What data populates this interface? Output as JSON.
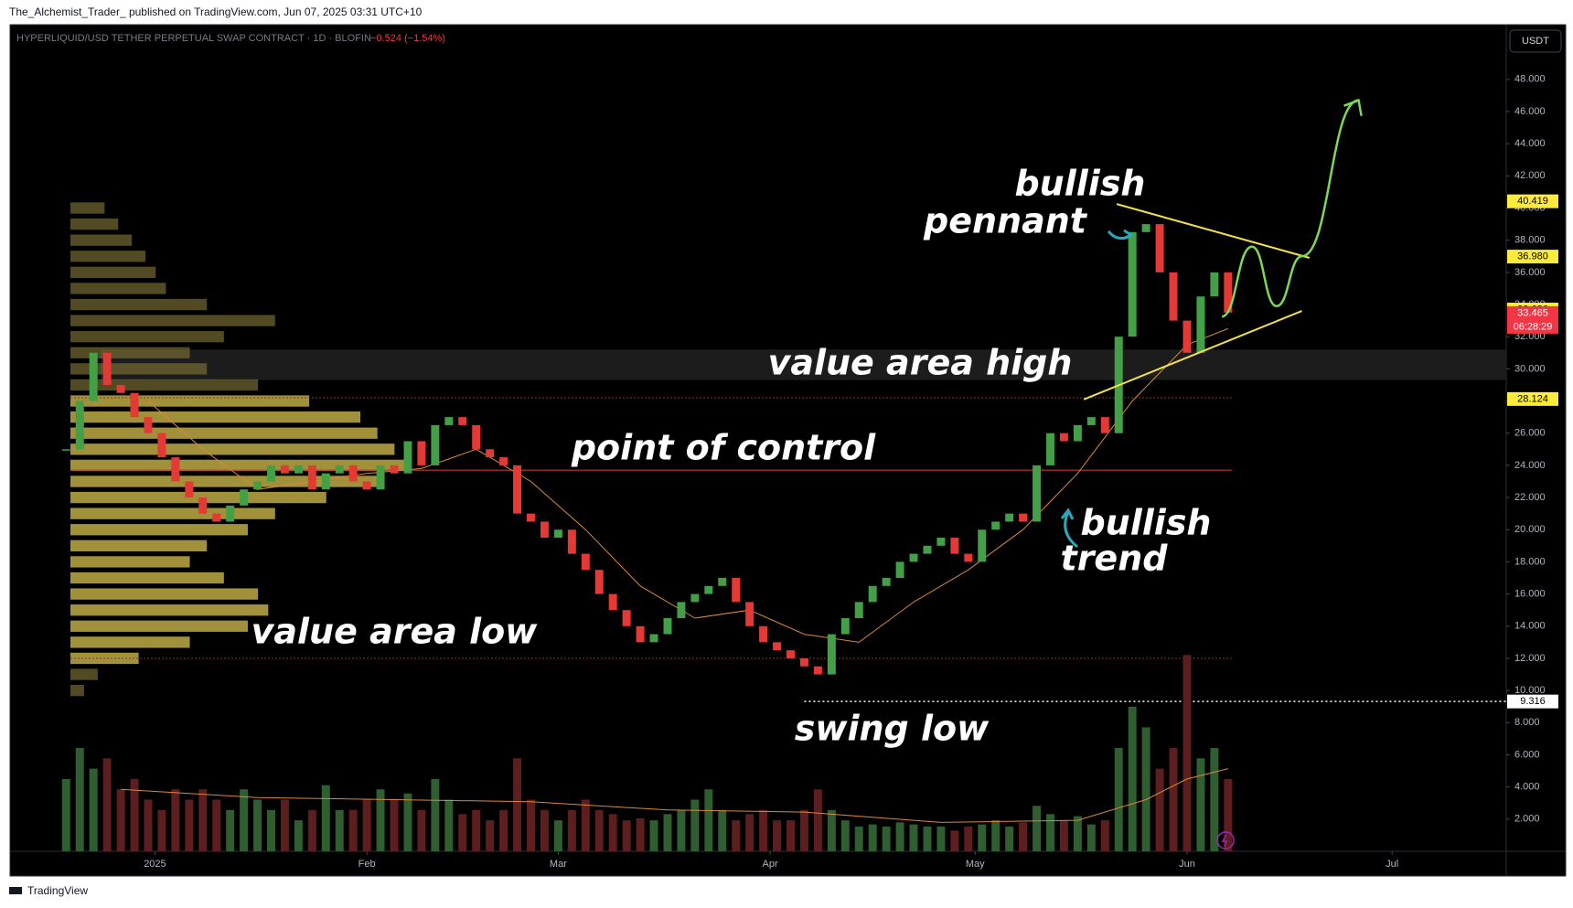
{
  "header": {
    "publisher": "The_Alchemist_Trader_ published on TradingView.com, Jun 07, 2025 03:31 UTC+10",
    "footer": "TradingView"
  },
  "chart_data": {
    "type": "candlestick",
    "title": "HYPERLIQUID/USD TETHER PERPETUAL SWAP CONTRACT · 1D · BLOFIN",
    "change": "−0.524 (−1.54%)",
    "currency": "USDT",
    "x": [
      -13,
      -11,
      -9,
      -7,
      -5,
      -3,
      -1,
      1,
      3,
      5,
      7,
      9,
      11,
      13,
      15,
      17,
      19,
      21,
      23,
      25,
      27,
      29,
      31,
      33,
      35,
      37,
      39,
      41,
      43,
      45,
      47,
      49,
      51,
      53,
      55,
      57,
      59,
      61,
      63,
      65,
      67,
      69,
      71,
      73,
      75,
      77,
      79,
      81,
      83,
      85,
      87,
      89,
      91,
      93,
      95,
      97,
      99,
      101,
      103,
      105,
      107,
      109,
      111,
      113,
      115,
      117,
      119,
      121,
      123,
      125,
      127,
      129,
      131,
      133,
      135,
      137,
      139,
      141,
      143,
      145,
      147,
      149,
      151,
      153,
      155,
      157
    ],
    "close": [
      25,
      28,
      31,
      29,
      28.5,
      27,
      26,
      24.5,
      23,
      22,
      21,
      20.5,
      21.5,
      22.5,
      23,
      24,
      23.5,
      24,
      22.5,
      23.5,
      24,
      23,
      22.5,
      24,
      23.5,
      25.5,
      24,
      26.5,
      27,
      26.5,
      25,
      24.5,
      24,
      21,
      20.5,
      19.5,
      20,
      18.5,
      17.5,
      16,
      15,
      14,
      13,
      13.5,
      14.5,
      15.5,
      16,
      16.5,
      17,
      15.5,
      14,
      13,
      12.5,
      12,
      11.5,
      11,
      13.5,
      14.5,
      15.5,
      16.5,
      17,
      18,
      18.5,
      19,
      19.5,
      18.5,
      18,
      20,
      20.5,
      21,
      20.5,
      24,
      26,
      25.5,
      26.5,
      27,
      26,
      32,
      38.5,
      39,
      36,
      33,
      31,
      34.5,
      36,
      33.5
    ],
    "volume": [
      3.5,
      5,
      4,
      4.5,
      3,
      3.5,
      2.5,
      2,
      3,
      2.5,
      3,
      2.5,
      2,
      3,
      2.5,
      2,
      2.5,
      1.5,
      2,
      3.2,
      2,
      2,
      2.5,
      3,
      2.5,
      2.8,
      2,
      3.5,
      2.5,
      1.8,
      2,
      1.5,
      2,
      4.5,
      2.5,
      2,
      1.5,
      2,
      2.5,
      2,
      1.8,
      1.5,
      1.6,
      1.5,
      1.8,
      2,
      2.5,
      3,
      2,
      1.5,
      1.8,
      2,
      1.5,
      1.5,
      2,
      3,
      2,
      1.5,
      1.2,
      1.3,
      1.2,
      1.4,
      1.3,
      1.2,
      1.2,
      1,
      1.2,
      1.3,
      1.5,
      1.2,
      1.4,
      2.2,
      1.8,
      1.5,
      1.7,
      1.3,
      1.5,
      5,
      7,
      6,
      4,
      5,
      9.5,
      4.5,
      5,
      3.5
    ],
    "up_color": "#43a047",
    "down_color": "#e53935",
    "volume_up_color": "#2f5e31",
    "volume_down_color": "#5c1e1e",
    "xlim": [
      -21.2,
      197.7
    ],
    "xticks": [
      {
        "value": 0,
        "label": "2025"
      },
      {
        "value": 31,
        "label": "Feb"
      },
      {
        "value": 59,
        "label": "Mar"
      },
      {
        "value": 90,
        "label": "Apr"
      },
      {
        "value": 120,
        "label": "May"
      },
      {
        "value": 151,
        "label": "Jun"
      },
      {
        "value": 181,
        "label": "Jul"
      }
    ],
    "ylim": [
      0,
      51.4
    ],
    "yticks": [
      {
        "value": 2,
        "label": "2.000"
      },
      {
        "value": 4,
        "label": "4.000"
      },
      {
        "value": 6,
        "label": "6.000"
      },
      {
        "value": 8,
        "label": "8.000"
      },
      {
        "value": 10,
        "label": "10.000"
      },
      {
        "value": 12,
        "label": "12.000"
      },
      {
        "value": 14,
        "label": "14.000"
      },
      {
        "value": 16,
        "label": "16.000"
      },
      {
        "value": 18,
        "label": "18.000"
      },
      {
        "value": 20,
        "label": "20.000"
      },
      {
        "value": 22,
        "label": "22.000"
      },
      {
        "value": 24,
        "label": "24.000"
      },
      {
        "value": 26,
        "label": "26.000"
      },
      {
        "value": 28,
        "label": "28.000"
      },
      {
        "value": 30,
        "label": "30.000"
      },
      {
        "value": 32,
        "label": "32.000"
      },
      {
        "value": 34,
        "label": "34.000"
      },
      {
        "value": 36,
        "label": "36.000"
      },
      {
        "value": 38,
        "label": "38.000"
      },
      {
        "value": 40,
        "label": "40.000"
      },
      {
        "value": 42,
        "label": "42.000"
      },
      {
        "value": 44,
        "label": "44.000"
      },
      {
        "value": 46,
        "label": "46.000"
      },
      {
        "value": 48,
        "label": "48.000"
      }
    ],
    "volume_lim": [
      0,
      10
    ],
    "ma": {
      "color": "#d9893a",
      "x": [
        -1,
        7,
        15,
        23,
        31,
        39,
        47,
        55,
        63,
        71,
        79,
        87,
        95,
        103,
        111,
        119,
        127,
        135,
        143,
        151,
        157
      ],
      "values": [
        28,
        25,
        22.5,
        23,
        23.5,
        23.8,
        25,
        23,
        20,
        16.5,
        14.5,
        15,
        13.5,
        13,
        15.5,
        17.5,
        20,
        23.5,
        28,
        31.5,
        32.5
      ]
    },
    "volume_ma": {
      "color": "#d9893a",
      "x": [
        -5,
        15,
        35,
        55,
        75,
        95,
        115,
        135,
        145,
        151,
        157
      ],
      "values": [
        3,
        2.6,
        2.5,
        2.4,
        2,
        1.9,
        1.4,
        1.5,
        2.5,
        3.5,
        4
      ]
    },
    "volume_profile": {
      "levels": [
        40,
        39,
        38,
        37,
        36,
        35,
        34,
        33,
        32,
        31,
        30,
        29,
        28,
        27,
        26,
        25,
        24,
        23,
        22,
        21,
        20,
        19,
        18,
        17,
        16,
        15,
        14,
        13,
        12,
        11,
        10
      ],
      "values": [
        10,
        14,
        18,
        22,
        25,
        28,
        40,
        60,
        45,
        35,
        40,
        55,
        70,
        85,
        90,
        95,
        100,
        92,
        75,
        60,
        52,
        40,
        35,
        45,
        55,
        58,
        52,
        35,
        20,
        8,
        4
      ],
      "xlim": [
        0,
        100
      ],
      "color": "#d6c24e",
      "outer_color": "#7d7136"
    },
    "levels": {
      "poc": 23.7,
      "value_area_high": 28.2,
      "value_area_low": 12,
      "swing_low": 9.316,
      "value_area_high_zone": [
        29.3,
        31.2
      ]
    },
    "price_markers": [
      {
        "value": 40.419,
        "color": "#ffeb3b"
      },
      {
        "value": 36.98,
        "label": "36.980",
        "color": "#ffeb3b"
      },
      {
        "value": 33.686,
        "color": "#ffeb3b"
      },
      {
        "value": 33.465,
        "color": "#f23645"
      },
      {
        "value": 28.124,
        "color": "#ffeb3b"
      },
      {
        "value": 9.316,
        "color": "#ffffff"
      }
    ],
    "countdown": "06:28:29",
    "pennant": {
      "color": "#f4e04d",
      "upper": {
        "x": [
          140.7,
          168.9
        ],
        "y": [
          40.25,
          36.9
        ]
      },
      "lower": {
        "x": [
          135.9,
          167.8
        ],
        "y": [
          28.1,
          33.6
        ]
      }
    },
    "projection": {
      "color": "#7ed957",
      "x": [
        156.1,
        160.5,
        164.1,
        167.8,
        176.1
      ],
      "y": [
        33.25,
        37.6,
        33.9,
        37,
        46.7
      ]
    },
    "annotations": [
      "bullish",
      "pennant",
      "value area high",
      "point of control",
      "value area low",
      "swing low",
      "bullish",
      "trend"
    ]
  }
}
